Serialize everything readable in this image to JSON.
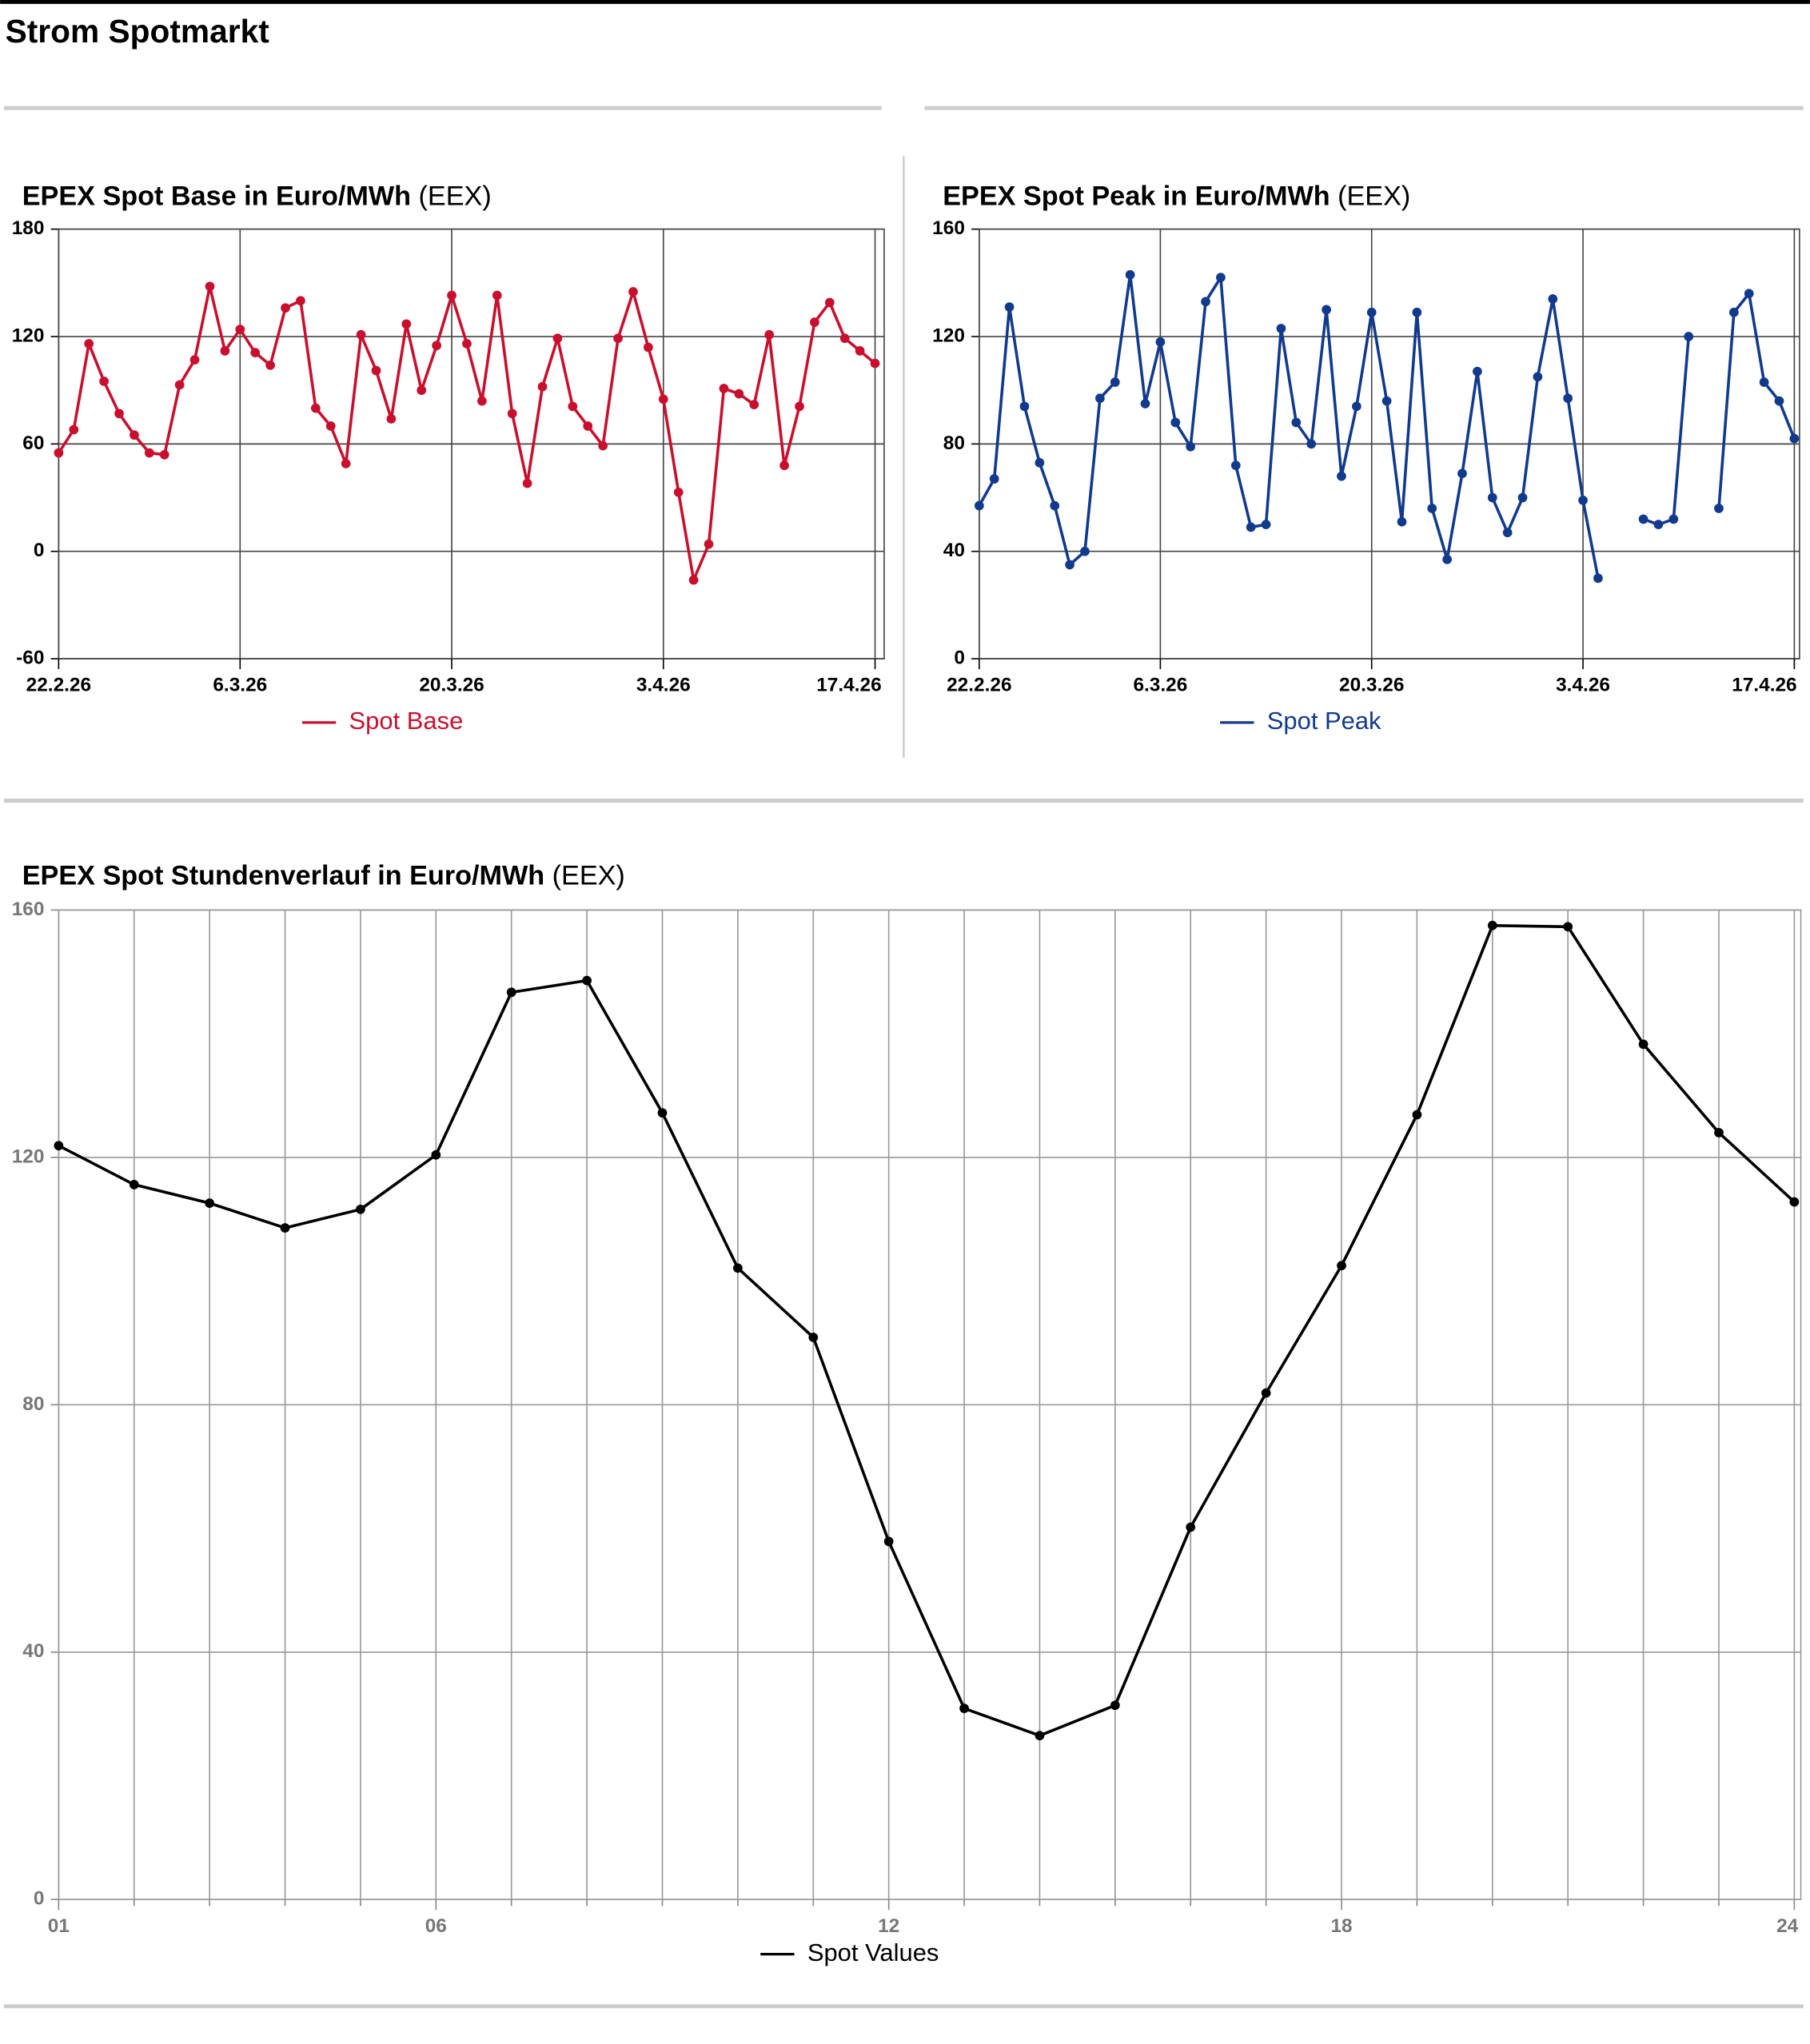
{
  "title": "Strom Spotmarkt",
  "chart_data": [
    {
      "type": "line",
      "title": "EPEX Spot Base in Euro/MWh",
      "source": "(EEX)",
      "categories": [
        "22.2.26",
        null,
        null,
        null,
        null,
        null,
        null,
        null,
        null,
        null,
        null,
        null,
        "6.3.26",
        null,
        null,
        null,
        null,
        null,
        null,
        null,
        null,
        null,
        null,
        null,
        null,
        null,
        "20.3.26",
        null,
        null,
        null,
        null,
        null,
        null,
        null,
        null,
        null,
        null,
        null,
        null,
        null,
        "3.4.26",
        null,
        null,
        null,
        null,
        null,
        null,
        null,
        null,
        null,
        null,
        null,
        null,
        null,
        "17.4.26"
      ],
      "series": [
        {
          "name": "Spot Base",
          "color": "#c8102e",
          "values": [
            55,
            68,
            116,
            95,
            77,
            65,
            55,
            54,
            93,
            107,
            148,
            112,
            124,
            111,
            104,
            136,
            140,
            80,
            70,
            49,
            121,
            101,
            74,
            127,
            90,
            115,
            143,
            116,
            84,
            143,
            77,
            38,
            92,
            119,
            81,
            70,
            59,
            119,
            145,
            114,
            85,
            33,
            -16,
            4,
            91,
            88,
            82,
            121,
            48,
            81,
            128,
            139,
            119,
            112,
            105
          ]
        }
      ],
      "ylim": [
        -60,
        180
      ],
      "yticks": [
        -60,
        0,
        60,
        120,
        180
      ],
      "grid": true
    },
    {
      "type": "line",
      "title": "EPEX Spot Peak in Euro/MWh",
      "source": "(EEX)",
      "categories": [
        "22.2.26",
        null,
        null,
        null,
        null,
        null,
        null,
        null,
        null,
        null,
        null,
        null,
        "6.3.26",
        null,
        null,
        null,
        null,
        null,
        null,
        null,
        null,
        null,
        null,
        null,
        null,
        null,
        "20.3.26",
        null,
        null,
        null,
        null,
        null,
        null,
        null,
        null,
        null,
        null,
        null,
        null,
        null,
        "3.4.26",
        null,
        null,
        null,
        null,
        null,
        null,
        null,
        null,
        null,
        null,
        null,
        null,
        null,
        "17.4.26"
      ],
      "series": [
        {
          "name": "Spot Peak",
          "color": "#123a8c",
          "values": [
            57,
            67,
            131,
            94,
            73,
            57,
            35,
            40,
            97,
            103,
            143,
            95,
            118,
            88,
            79,
            133,
            142,
            72,
            49,
            50,
            123,
            88,
            80,
            130,
            68,
            94,
            129,
            96,
            51,
            129,
            56,
            37,
            69,
            107,
            60,
            47,
            60,
            105,
            134,
            97,
            59,
            30,
            null,
            null,
            52,
            50,
            52,
            120,
            null,
            56,
            129,
            136,
            103,
            96,
            82
          ]
        }
      ],
      "ylim": [
        0,
        160
      ],
      "yticks": [
        0,
        40,
        80,
        120,
        160
      ],
      "grid": true
    },
    {
      "type": "line",
      "title": "EPEX Spot Stundenverlauf in Euro/MWh",
      "source": "(EEX)",
      "categories": [
        "01",
        null,
        null,
        null,
        null,
        "06",
        null,
        null,
        null,
        null,
        null,
        "12",
        null,
        null,
        null,
        null,
        null,
        "18",
        null,
        null,
        null,
        null,
        null,
        "24"
      ],
      "series": [
        {
          "name": "Spot Values",
          "color": "#000000",
          "values": [
            121.9,
            115.6,
            112.6,
            108.6,
            111.6,
            120.4,
            146.7,
            148.6,
            127.2,
            102.1,
            90.9,
            57.9,
            30.9,
            26.5,
            31.4,
            60.2,
            81.9,
            102.5,
            126.9,
            157.5,
            157.3,
            138.3,
            124.0,
            112.8
          ]
        }
      ],
      "ylim": [
        0,
        160
      ],
      "yticks": [
        0,
        40,
        80,
        120,
        160
      ],
      "grid": true
    }
  ]
}
